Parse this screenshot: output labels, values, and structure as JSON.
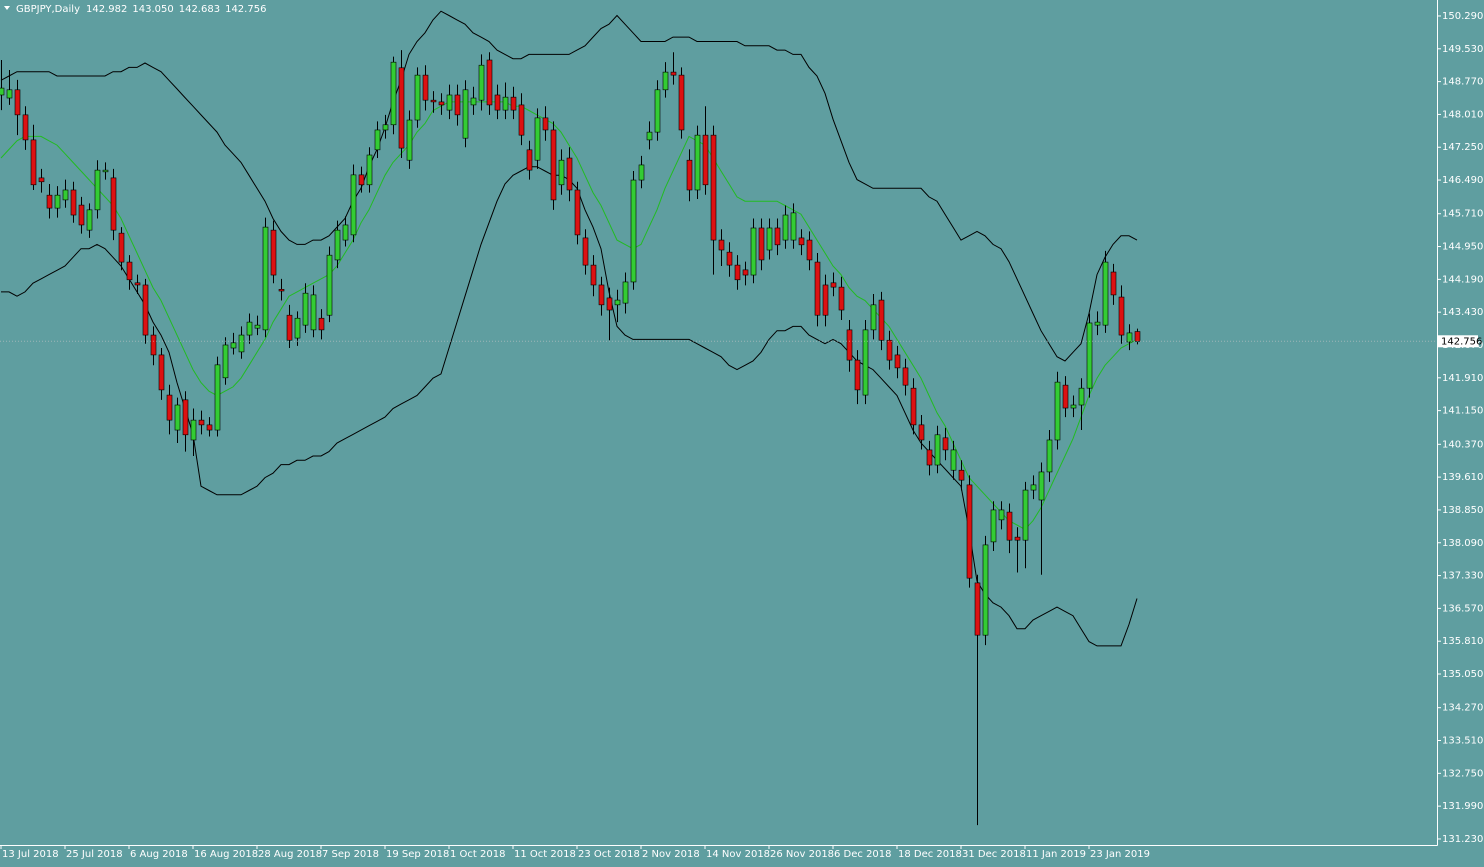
{
  "chart_data": {
    "type": "candlestick",
    "title": "GBPJPY,Daily",
    "ohlc_labels": [
      "142.982",
      "143.050",
      "142.683",
      "142.756"
    ],
    "up_color": "#33cc33",
    "down_color": "#dd1111",
    "wick_color": "#000000",
    "categories": [
      "13 Jul 2018",
      null,
      null,
      null,
      null,
      null,
      null,
      null,
      "25 Jul 2018",
      null,
      null,
      null,
      null,
      null,
      null,
      null,
      "6 Aug 2018",
      null,
      null,
      null,
      null,
      null,
      null,
      null,
      "16 Aug 2018",
      null,
      null,
      null,
      null,
      null,
      null,
      null,
      "28 Aug 2018",
      null,
      null,
      null,
      null,
      null,
      null,
      null,
      "7 Sep 2018",
      null,
      null,
      null,
      null,
      null,
      null,
      null,
      "19 Sep 2018",
      null,
      null,
      null,
      null,
      null,
      null,
      null,
      "1 Oct 2018",
      null,
      null,
      null,
      null,
      null,
      null,
      null,
      "11 Oct 2018",
      null,
      null,
      null,
      null,
      null,
      null,
      null,
      "23 Oct 2018",
      null,
      null,
      null,
      null,
      null,
      null,
      null,
      "2 Nov 2018",
      null,
      null,
      null,
      null,
      null,
      null,
      null,
      "14 Nov 2018",
      null,
      null,
      null,
      null,
      null,
      null,
      null,
      "26 Nov 2018",
      null,
      null,
      null,
      null,
      null,
      null,
      null,
      "6 Dec 2018",
      null,
      null,
      null,
      null,
      null,
      null,
      null,
      "18 Dec 2018",
      null,
      null,
      null,
      null,
      null,
      null,
      null,
      "31 Dec 2018",
      null,
      null,
      null,
      null,
      null,
      null,
      null,
      "11 Jan 2019",
      null,
      null,
      null,
      null,
      null,
      null,
      null,
      "23 Jan 2019",
      null,
      null,
      null,
      null,
      null,
      null
    ],
    "open": [
      148.46,
      148.39,
      148.58,
      148.0,
      147.42,
      146.54,
      146.14,
      145.84,
      146.03,
      146.26,
      145.91,
      145.33,
      145.8,
      146.68,
      146.54,
      145.26,
      144.59,
      144.11,
      144.06,
      142.9,
      142.44,
      141.51,
      140.7,
      141.4,
      140.47,
      140.93,
      140.82,
      140.7,
      141.91,
      142.6,
      142.51,
      142.9,
      143.06,
      143.02,
      145.33,
      143.96,
      143.36,
      142.83,
      143.13,
      143.02,
      143.29,
      143.36,
      144.64,
      145.1,
      145.22,
      146.61,
      146.38,
      147.19,
      147.65,
      147.77,
      149.09,
      146.95,
      147.88,
      148.92,
      148.34,
      148.3,
      148.11,
      148.46,
      147.46,
      148.23,
      148.34,
      149.27,
      148.46,
      148.11,
      148.41,
      148.23,
      147.19,
      146.95,
      147.93,
      147.65,
      146.38,
      147.0,
      146.26,
      145.15,
      144.52,
      144.06,
      143.76,
      143.6,
      143.64,
      144.13,
      146.49,
      147.42,
      147.6,
      148.58,
      148.99,
      148.92,
      146.95,
      146.26,
      147.53,
      147.53,
      145.1,
      144.82,
      144.52,
      144.41,
      144.29,
      145.38,
      144.87,
      145.38,
      145.1,
      145.1,
      145.15,
      145.1,
      144.59,
      144.06,
      144.11,
      144.01,
      143.02,
      142.32,
      141.51,
      143.02,
      143.71,
      142.78,
      142.44,
      142.14,
      141.67,
      140.82,
      140.24,
      139.89,
      140.52,
      139.77,
      139.77,
      139.43,
      137.16,
      135.95,
      138.11,
      138.62,
      138.8,
      138.22,
      138.15,
      139.31,
      139.08,
      139.73,
      140.47,
      141.74,
      141.21,
      141.28,
      141.67,
      143.13,
      143.13,
      144.36,
      143.78,
      142.74,
      142.982
    ],
    "high": [
      149.27,
      149.04,
      148.81,
      148.2,
      147.77,
      146.75,
      146.4,
      146.35,
      146.5,
      146.45,
      146.1,
      145.95,
      146.95,
      146.9,
      146.75,
      145.4,
      144.75,
      144.3,
      144.2,
      143.1,
      142.6,
      141.75,
      141.45,
      141.6,
      141.2,
      141.15,
      141.0,
      142.4,
      142.85,
      142.95,
      143.1,
      143.4,
      143.35,
      145.62,
      145.55,
      144.2,
      143.6,
      143.45,
      144.1,
      144.05,
      143.5,
      144.95,
      145.55,
      145.65,
      146.85,
      146.8,
      147.25,
      147.85,
      148.0,
      149.35,
      149.5,
      148.1,
      149.1,
      149.15,
      148.55,
      148.5,
      148.7,
      148.7,
      148.8,
      148.65,
      149.4,
      149.45,
      148.7,
      148.75,
      148.65,
      148.5,
      147.4,
      148.15,
      148.2,
      147.85,
      147.2,
      147.25,
      146.45,
      145.35,
      144.75,
      144.25,
      144.0,
      143.95,
      144.35,
      146.7,
      147.05,
      147.85,
      148.8,
      149.22,
      149.45,
      149.1,
      147.2,
      147.75,
      148.2,
      147.75,
      145.35,
      145.05,
      144.75,
      144.6,
      145.6,
      145.6,
      145.6,
      145.6,
      145.9,
      145.95,
      145.35,
      145.3,
      144.8,
      144.3,
      144.35,
      144.25,
      143.25,
      142.55,
      143.25,
      143.85,
      143.9,
      143.0,
      142.65,
      142.35,
      141.9,
      141.05,
      140.45,
      140.8,
      140.75,
      140.45,
      140.0,
      139.65,
      137.35,
      138.25,
      139.05,
      139.05,
      139.0,
      138.45,
      139.5,
      139.65,
      139.95,
      140.7,
      142.05,
      141.95,
      141.5,
      141.9,
      143.4,
      143.45,
      144.85,
      144.55,
      144.05,
      143.15,
      143.05
    ],
    "low": [
      148.11,
      148.23,
      147.53,
      147.19,
      146.26,
      146.2,
      145.6,
      145.62,
      145.85,
      145.5,
      145.25,
      145.15,
      145.6,
      146.5,
      145.1,
      144.4,
      143.95,
      143.85,
      142.7,
      142.2,
      141.4,
      140.6,
      140.4,
      140.2,
      140.1,
      140.6,
      140.55,
      140.55,
      141.75,
      142.45,
      142.35,
      142.7,
      142.9,
      142.85,
      144.1,
      143.7,
      142.6,
      142.65,
      142.95,
      142.85,
      142.8,
      143.2,
      144.45,
      144.95,
      145.05,
      146.2,
      146.2,
      147.0,
      147.45,
      147.55,
      147.0,
      146.75,
      147.7,
      148.1,
      148.05,
      148.0,
      147.9,
      147.75,
      147.25,
      148.0,
      148.1,
      148.0,
      147.9,
      147.9,
      147.9,
      147.3,
      146.5,
      146.75,
      147.4,
      145.8,
      146.15,
      146.0,
      145.0,
      144.3,
      143.8,
      143.35,
      142.78,
      143.2,
      143.4,
      143.95,
      146.3,
      147.2,
      147.4,
      148.4,
      148.7,
      147.45,
      146.0,
      146.05,
      146.15,
      144.3,
      144.5,
      144.25,
      143.95,
      144.05,
      144.1,
      144.4,
      144.65,
      144.75,
      144.9,
      144.9,
      144.75,
      144.4,
      143.1,
      143.1,
      143.8,
      143.25,
      142.05,
      141.3,
      141.3,
      142.8,
      142.55,
      142.1,
      141.9,
      141.5,
      140.6,
      140.25,
      139.65,
      139.7,
      140.0,
      139.55,
      139.3,
      137.05,
      131.55,
      135.72,
      137.9,
      138.4,
      137.85,
      137.4,
      137.5,
      139.1,
      137.35,
      139.5,
      140.25,
      141.0,
      141.0,
      140.7,
      141.45,
      142.9,
      142.95,
      143.6,
      142.7,
      142.55,
      142.683
    ],
    "close": [
      148.62,
      148.58,
      148.0,
      147.42,
      146.38,
      146.45,
      145.84,
      146.14,
      146.26,
      145.68,
      145.45,
      145.8,
      146.72,
      146.72,
      145.33,
      144.59,
      144.18,
      144.06,
      142.9,
      142.44,
      141.63,
      140.93,
      141.28,
      140.59,
      140.93,
      140.82,
      140.7,
      142.21,
      142.67,
      142.72,
      142.9,
      143.2,
      143.13,
      145.4,
      144.29,
      143.92,
      142.78,
      143.29,
      143.87,
      143.83,
      143.02,
      144.75,
      145.33,
      145.45,
      146.61,
      146.38,
      147.07,
      147.65,
      147.77,
      149.22,
      147.23,
      147.88,
      148.92,
      148.34,
      148.3,
      148.23,
      148.46,
      148.0,
      148.58,
      148.39,
      149.15,
      148.23,
      148.11,
      148.41,
      148.11,
      147.53,
      146.72,
      147.93,
      147.65,
      146.03,
      146.95,
      146.26,
      145.22,
      144.52,
      144.06,
      143.6,
      143.48,
      143.71,
      144.13,
      146.49,
      146.84,
      147.6,
      148.58,
      148.99,
      148.92,
      147.65,
      146.26,
      147.53,
      146.38,
      145.1,
      144.87,
      144.52,
      144.18,
      144.29,
      145.38,
      144.64,
      145.38,
      144.99,
      145.68,
      145.73,
      144.99,
      144.64,
      143.36,
      143.36,
      144.01,
      143.48,
      142.32,
      141.63,
      143.02,
      143.6,
      142.78,
      142.32,
      142.14,
      141.74,
      140.82,
      140.47,
      139.89,
      140.59,
      140.24,
      140.24,
      139.54,
      137.27,
      135.95,
      138.04,
      138.85,
      138.85,
      138.15,
      138.15,
      139.31,
      139.43,
      139.73,
      140.47,
      141.81,
      141.21,
      141.28,
      141.67,
      143.18,
      143.2,
      144.59,
      143.83,
      142.9,
      142.95,
      142.756
    ],
    "lines": [
      {
        "color": "#000000",
        "values": [
          148.8,
          148.9,
          149.0,
          149.0,
          149.0,
          149.0,
          149.0,
          148.9,
          148.9,
          148.9,
          148.9,
          148.9,
          148.9,
          148.9,
          149.0,
          149.0,
          149.1,
          149.1,
          149.2,
          149.1,
          149.0,
          148.8,
          148.6,
          148.4,
          148.2,
          148.0,
          147.8,
          147.6,
          147.3,
          147.1,
          146.9,
          146.6,
          146.3,
          146.0,
          145.6,
          145.3,
          145.1,
          145.0,
          145.0,
          145.1,
          145.1,
          145.2,
          145.4,
          145.6,
          146.0,
          146.3,
          146.8,
          147.2,
          147.7,
          148.3,
          148.8,
          149.4,
          149.7,
          149.9,
          150.2,
          150.4,
          150.3,
          150.2,
          150.1,
          149.9,
          149.8,
          149.7,
          149.5,
          149.4,
          149.3,
          149.3,
          149.4,
          149.4,
          149.4,
          149.4,
          149.4,
          149.4,
          149.5,
          149.6,
          149.8,
          150.0,
          150.1,
          150.3,
          150.1,
          149.9,
          149.7,
          149.7,
          149.7,
          149.7,
          149.8,
          149.8,
          149.8,
          149.7,
          149.7,
          149.7,
          149.7,
          149.7,
          149.7,
          149.6,
          149.6,
          149.6,
          149.6,
          149.5,
          149.5,
          149.4,
          149.4,
          149.1,
          148.9,
          148.5,
          147.9,
          147.4,
          146.9,
          146.5,
          146.4,
          146.3,
          146.3,
          146.3,
          146.3,
          146.3,
          146.3,
          146.3,
          146.1,
          146.0,
          145.7,
          145.4,
          145.1,
          145.2,
          145.3,
          145.2,
          145.0,
          144.9,
          144.6,
          144.2,
          143.8,
          143.4,
          143.0,
          142.7,
          142.4,
          142.3,
          142.5,
          142.7,
          143.4,
          144.3,
          144.7,
          145.0,
          145.2,
          145.2,
          145.1
        ]
      },
      {
        "color": "#22bb22",
        "values": [
          147.0,
          147.2,
          147.4,
          147.5,
          147.5,
          147.5,
          147.4,
          147.3,
          147.1,
          146.9,
          146.7,
          146.5,
          146.3,
          146.1,
          145.9,
          145.6,
          145.2,
          144.8,
          144.4,
          144.0,
          143.7,
          143.3,
          142.9,
          142.5,
          142.1,
          141.8,
          141.6,
          141.5,
          141.6,
          141.7,
          141.9,
          142.2,
          142.5,
          142.8,
          143.2,
          143.5,
          143.8,
          143.9,
          144.0,
          144.1,
          144.2,
          144.3,
          144.5,
          144.8,
          145.1,
          145.5,
          145.8,
          146.2,
          146.6,
          146.9,
          147.1,
          147.3,
          147.6,
          147.8,
          148.1,
          148.2,
          148.3,
          148.3,
          148.3,
          148.3,
          148.3,
          148.3,
          148.3,
          148.3,
          148.2,
          148.2,
          148.1,
          148.0,
          147.9,
          147.8,
          147.6,
          147.3,
          147.0,
          146.6,
          146.2,
          145.9,
          145.5,
          145.1,
          145.0,
          144.9,
          145.0,
          145.4,
          145.8,
          146.3,
          146.7,
          147.1,
          147.5,
          147.4,
          147.3,
          147.0,
          146.7,
          146.4,
          146.1,
          146.0,
          146.0,
          146.0,
          146.0,
          146.0,
          145.9,
          145.8,
          145.7,
          145.4,
          145.1,
          144.8,
          144.5,
          144.3,
          144.0,
          143.8,
          143.7,
          143.5,
          143.3,
          143.1,
          142.8,
          142.5,
          142.2,
          141.9,
          141.5,
          141.1,
          140.8,
          140.4,
          140.0,
          139.6,
          139.4,
          139.2,
          139.0,
          138.8,
          138.6,
          138.5,
          138.4,
          138.6,
          138.9,
          139.3,
          139.7,
          140.1,
          140.5,
          141.0,
          141.5,
          141.9,
          142.2,
          142.4,
          142.6,
          142.7,
          142.8
        ]
      },
      {
        "color": "#000000",
        "values": [
          143.9,
          143.9,
          143.8,
          143.9,
          144.1,
          144.2,
          144.3,
          144.4,
          144.5,
          144.7,
          144.9,
          144.9,
          145.0,
          144.9,
          144.7,
          144.5,
          144.2,
          143.9,
          143.6,
          143.2,
          142.9,
          142.5,
          141.8,
          141.2,
          140.6,
          139.4,
          139.3,
          139.2,
          139.2,
          139.2,
          139.2,
          139.3,
          139.4,
          139.6,
          139.7,
          139.9,
          139.9,
          140.0,
          140.0,
          140.1,
          140.1,
          140.2,
          140.4,
          140.5,
          140.6,
          140.7,
          140.8,
          140.9,
          141.0,
          141.2,
          141.3,
          141.4,
          141.5,
          141.7,
          141.9,
          142.0,
          142.6,
          143.2,
          143.8,
          144.4,
          145.0,
          145.5,
          146.0,
          146.4,
          146.6,
          146.7,
          146.8,
          146.8,
          146.7,
          146.6,
          146.6,
          146.5,
          146.3,
          145.8,
          145.4,
          144.9,
          143.9,
          143.1,
          142.9,
          142.8,
          142.8,
          142.8,
          142.8,
          142.8,
          142.8,
          142.8,
          142.8,
          142.7,
          142.6,
          142.5,
          142.4,
          142.2,
          142.1,
          142.2,
          142.3,
          142.5,
          142.8,
          143.0,
          143.0,
          143.1,
          143.1,
          142.9,
          142.8,
          142.7,
          142.8,
          142.7,
          142.5,
          142.3,
          142.2,
          142.1,
          141.9,
          141.7,
          141.5,
          141.1,
          140.7,
          140.4,
          140.2,
          140.0,
          139.8,
          139.6,
          139.4,
          138.4,
          137.2,
          136.9,
          136.7,
          136.6,
          136.4,
          136.1,
          136.1,
          136.3,
          136.4,
          136.5,
          136.6,
          136.5,
          136.4,
          136.1,
          135.8,
          135.7,
          135.7,
          135.7,
          135.7,
          136.2,
          136.8
        ]
      }
    ],
    "ylim": [
      131.09,
      150.66
    ],
    "yticks": [
      {
        "value": 150.29,
        "label": "150.290"
      },
      {
        "value": 149.53,
        "label": "149.530"
      },
      {
        "value": 148.77,
        "label": "148.770"
      },
      {
        "value": 148.01,
        "label": "148.010"
      },
      {
        "value": 147.25,
        "label": "147.250"
      },
      {
        "value": 146.49,
        "label": "146.490"
      },
      {
        "value": 145.71,
        "label": "145.710"
      },
      {
        "value": 144.95,
        "label": "144.950"
      },
      {
        "value": 144.19,
        "label": "144.190"
      },
      {
        "value": 143.43,
        "label": "143.430"
      },
      {
        "value": 142.67,
        "label": "142.670"
      },
      {
        "value": 141.91,
        "label": "141.910"
      },
      {
        "value": 141.15,
        "label": "141.150"
      },
      {
        "value": 140.37,
        "label": "140.370"
      },
      {
        "value": 139.61,
        "label": "139.610"
      },
      {
        "value": 138.85,
        "label": "138.850"
      },
      {
        "value": 138.09,
        "label": "138.090"
      },
      {
        "value": 137.33,
        "label": "137.330"
      },
      {
        "value": 136.57,
        "label": "136.570"
      },
      {
        "value": 135.81,
        "label": "135.810"
      },
      {
        "value": 135.05,
        "label": "135.050"
      },
      {
        "value": 134.27,
        "label": "134.270"
      },
      {
        "value": 133.51,
        "label": "133.510"
      },
      {
        "value": 132.75,
        "label": "132.750"
      },
      {
        "value": 131.99,
        "label": "131.990"
      },
      {
        "value": 131.23,
        "label": "131.230"
      }
    ],
    "last_price": {
      "value": 142.756,
      "label": "142.756"
    },
    "grid": false
  }
}
